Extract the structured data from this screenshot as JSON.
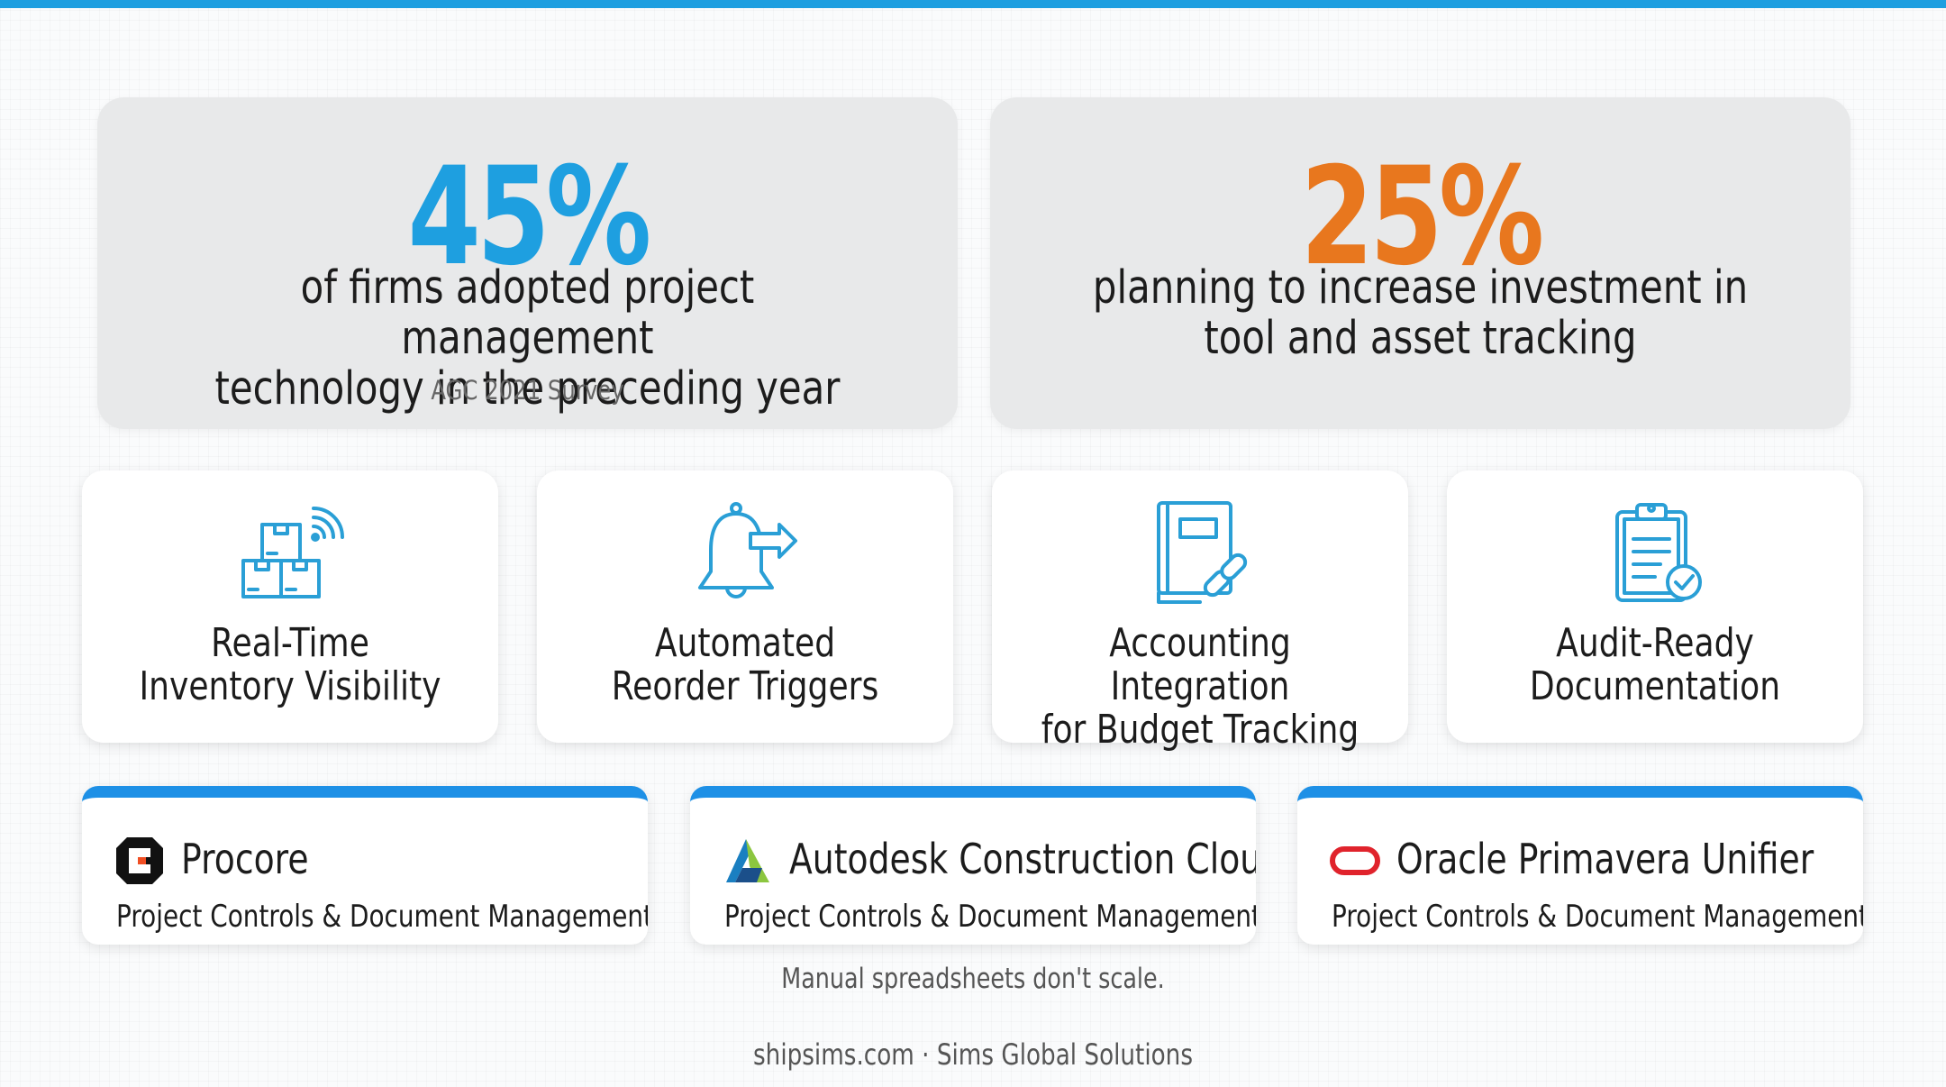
{
  "colors": {
    "accent_blue": "#1e9fe0",
    "accent_orange": "#e8771e",
    "icon_blue": "#2a9fd6",
    "tool_bar_blue": "#1e90e6"
  },
  "stats": [
    {
      "value": "45%",
      "line1": "of firms adopted project management",
      "line2": "technology in the preceding year",
      "source": "AGC 2021 Survey"
    },
    {
      "value": "25%",
      "line1": "planning to increase investment in",
      "line2": "tool and asset tracking"
    }
  ],
  "features": [
    {
      "icon": "inventory-boxes-wifi-icon",
      "line1": "Real-Time",
      "line2": "Inventory Visibility"
    },
    {
      "icon": "bell-arrow-icon",
      "line1": "Automated",
      "line2": "Reorder Triggers"
    },
    {
      "icon": "ledger-link-icon",
      "line1": "Accounting Integration",
      "line2": "for Budget Tracking"
    },
    {
      "icon": "clipboard-check-icon",
      "line1": "Audit-Ready",
      "line2": "Documentation"
    }
  ],
  "tools": [
    {
      "logo": "procore-logo",
      "name": "Procore",
      "subtitle": "Project Controls & Document Management"
    },
    {
      "logo": "autodesk-logo",
      "name": "Autodesk Construction Cloud",
      "subtitle": "Project Controls & Document Management"
    },
    {
      "logo": "oracle-logo",
      "name": "Oracle Primavera Unifier",
      "subtitle": "Project Controls & Document Management"
    }
  ],
  "tagline": "Manual spreadsheets don't scale.",
  "footer": "shipsims.com · Sims Global Solutions"
}
